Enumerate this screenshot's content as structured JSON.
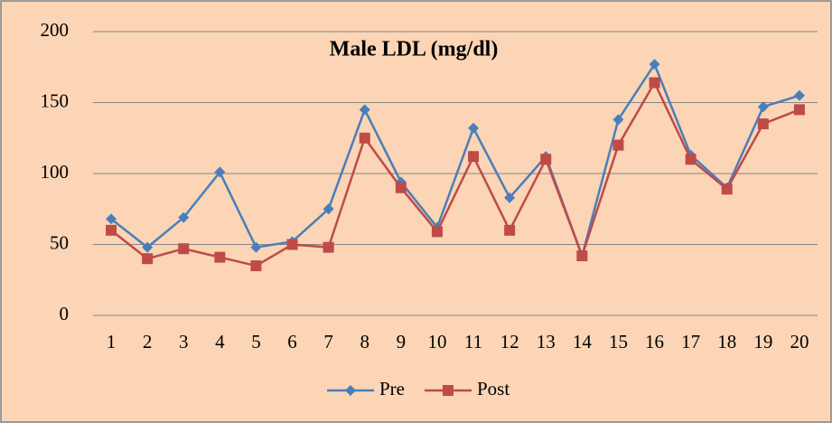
{
  "chart_data": {
    "type": "line",
    "title": "Male LDL (mg/dl)",
    "categories": [
      "1",
      "2",
      "3",
      "4",
      "5",
      "6",
      "7",
      "8",
      "9",
      "10",
      "11",
      "12",
      "13",
      "14",
      "15",
      "16",
      "17",
      "18",
      "19",
      "20"
    ],
    "series": [
      {
        "name": "Pre",
        "color": "#4a7ebb",
        "marker": "diamond",
        "values": [
          68,
          48,
          69,
          101,
          48,
          52,
          75,
          145,
          94,
          62,
          132,
          83,
          112,
          42,
          138,
          177,
          113,
          90,
          147,
          155
        ]
      },
      {
        "name": "Post",
        "color": "#be4b48",
        "marker": "square",
        "values": [
          60,
          40,
          47,
          41,
          35,
          50,
          48,
          125,
          90,
          59,
          112,
          60,
          110,
          42,
          120,
          164,
          110,
          89,
          135,
          145
        ]
      }
    ],
    "ylim": [
      0,
      200
    ],
    "yticks": [
      0,
      50,
      100,
      150,
      200
    ],
    "grid": true,
    "legend": "bottom"
  }
}
